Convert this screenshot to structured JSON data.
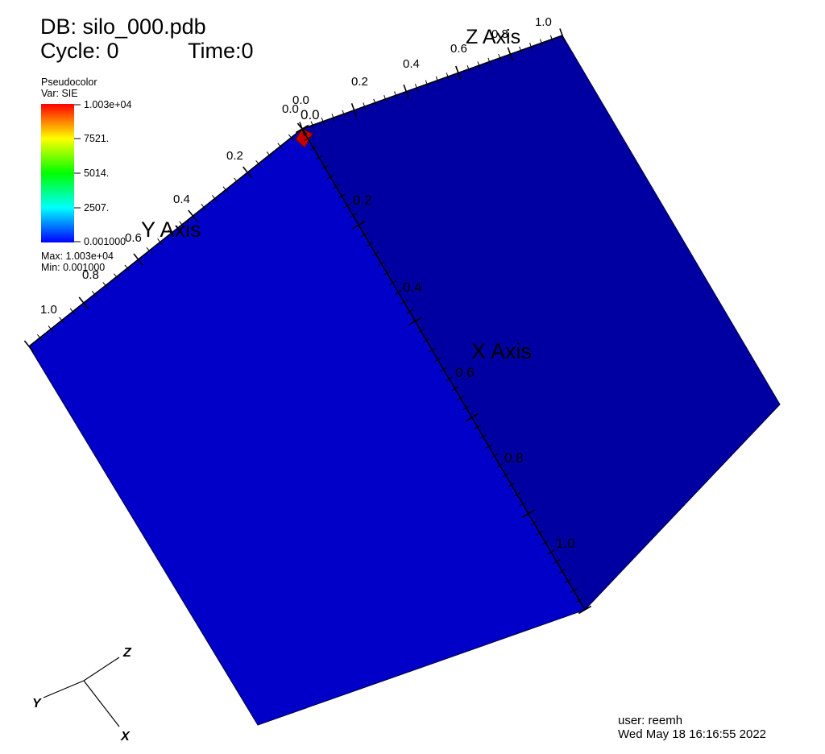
{
  "header": {
    "db_label": "DB: silo_000.pdb",
    "cycle_label": "Cycle: 0",
    "time_label": "Time:0"
  },
  "legend": {
    "plot_type": "Pseudocolor",
    "variable": "Var: SIE",
    "ticks": [
      "1.003e+04",
      "7521.",
      "5014.",
      "2507.",
      "0.001000"
    ],
    "max_label": "Max:  1.003e+04",
    "min_label": "Min:  0.001000",
    "colormap": [
      "#0000ff",
      "#00ffff",
      "#00ff00",
      "#ffff00",
      "#ff0000"
    ]
  },
  "axes": {
    "x_title": "X Axis",
    "y_title": "Y Axis",
    "z_title": "Z Axis",
    "x_ticks": [
      "0.0",
      "0.2",
      "0.4",
      "0.6",
      "0.8",
      "1.0"
    ],
    "y_ticks": [
      "0.0",
      "0.2",
      "0.4",
      "0.6",
      "0.8",
      "1.0"
    ],
    "z_ticks": [
      "0.0",
      "0.2",
      "0.4",
      "0.6",
      "0.8",
      "1.0"
    ]
  },
  "scene": {
    "left_face_color": "#0000c8",
    "right_face_color": "#0000a2",
    "hot_spot_color": "#c80000"
  },
  "triad": {
    "x_label": "X",
    "y_label": "Y",
    "z_label": "Z"
  },
  "footer": {
    "user": "user: reemh",
    "timestamp": "Wed May 18 16:16:55 2022"
  }
}
